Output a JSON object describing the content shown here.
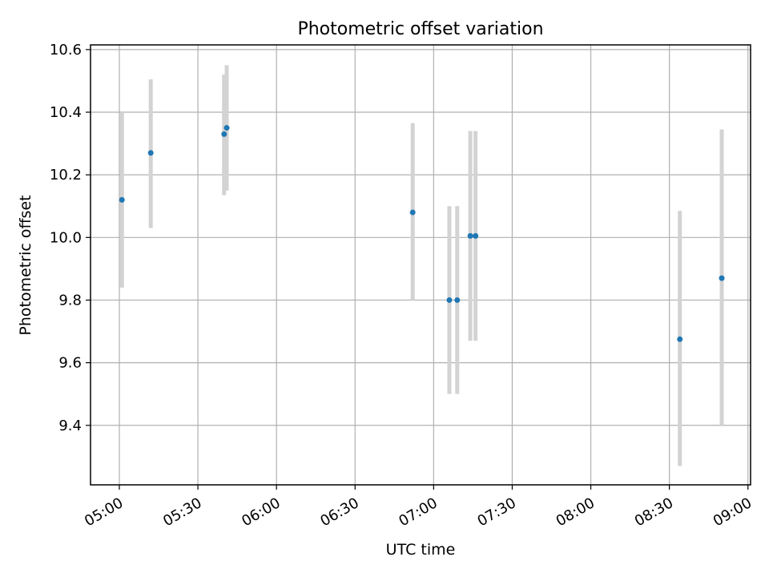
{
  "chart_data": {
    "type": "scatter",
    "title": "Photometric offset variation",
    "xlabel": "UTC time",
    "ylabel": "Photometric offset",
    "x_type": "time",
    "xlim": [
      "04:49",
      "09:01"
    ],
    "ylim": [
      9.21,
      10.615
    ],
    "grid": true,
    "xticks": [
      "05:00",
      "05:30",
      "06:00",
      "06:30",
      "07:00",
      "07:30",
      "08:00",
      "08:30",
      "09:00"
    ],
    "yticks": [
      "9.4",
      "9.6",
      "9.8",
      "10.0",
      "10.2",
      "10.4",
      "10.6"
    ],
    "colors": {
      "marker": "#1f77b4",
      "errorbar": "#d3d3d3",
      "grid": "#b0b0b0"
    },
    "points": [
      {
        "x": "05:01",
        "y": 10.12,
        "ylow": 9.84,
        "yhigh": 10.4
      },
      {
        "x": "05:12",
        "y": 10.27,
        "ylow": 10.03,
        "yhigh": 10.505
      },
      {
        "x": "05:40",
        "y": 10.33,
        "ylow": 10.135,
        "yhigh": 10.52
      },
      {
        "x": "05:41",
        "y": 10.35,
        "ylow": 10.15,
        "yhigh": 10.55
      },
      {
        "x": "06:52",
        "y": 10.08,
        "ylow": 9.8,
        "yhigh": 10.365
      },
      {
        "x": "07:06",
        "y": 9.8,
        "ylow": 9.5,
        "yhigh": 10.1
      },
      {
        "x": "07:09",
        "y": 9.8,
        "ylow": 9.5,
        "yhigh": 10.1
      },
      {
        "x": "07:14",
        "y": 10.005,
        "ylow": 9.67,
        "yhigh": 10.34
      },
      {
        "x": "07:16",
        "y": 10.005,
        "ylow": 9.67,
        "yhigh": 10.34
      },
      {
        "x": "08:34",
        "y": 9.675,
        "ylow": 9.27,
        "yhigh": 10.085
      },
      {
        "x": "08:50",
        "y": 9.87,
        "ylow": 9.4,
        "yhigh": 10.345
      }
    ]
  }
}
